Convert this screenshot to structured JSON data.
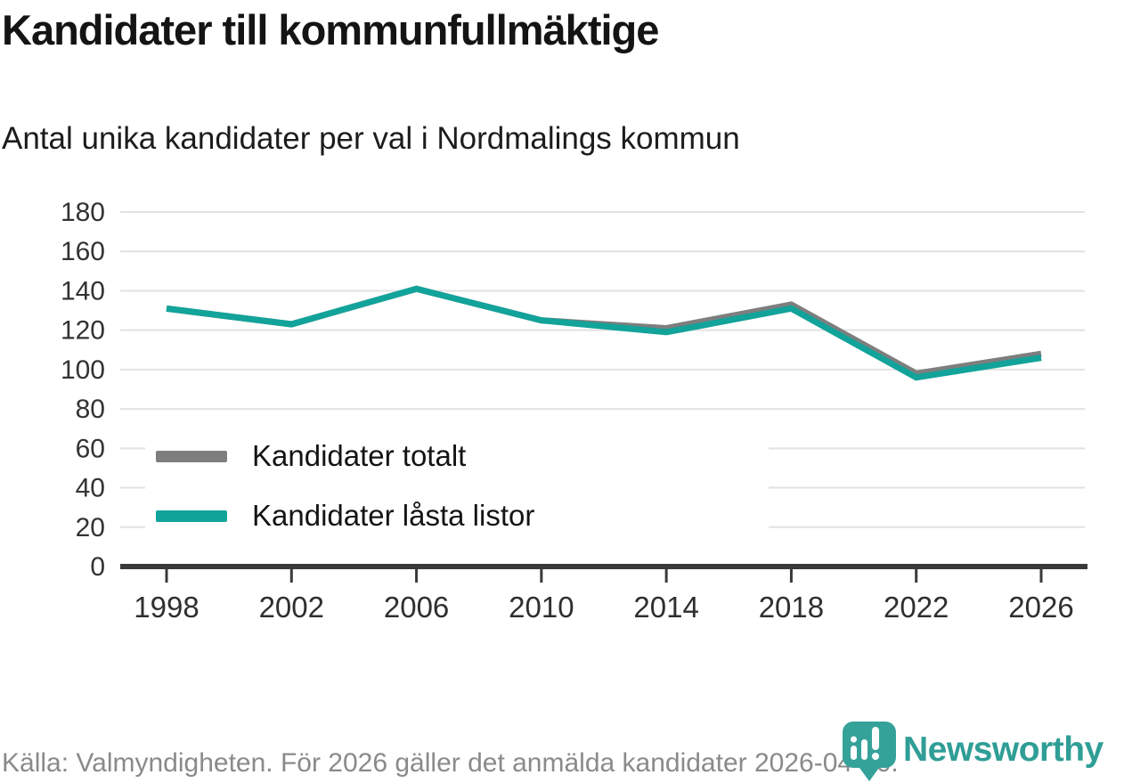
{
  "title": "Kandidater till kommunfullmäktige",
  "subtitle": "Antal unika kandidater per val i Nordmalings kommun",
  "legend": {
    "items": [
      {
        "label": "Kandidater totalt"
      },
      {
        "label": "Kandidater låsta listor"
      }
    ]
  },
  "footer": {
    "source_text": "Källa: Valmyndigheten. För 2026 gäller det anmälda kandidater 2026-04-10.",
    "brand_name": "Newsworthy"
  },
  "colors": {
    "series_total": "#7e7e7e",
    "series_locked": "#12a39a",
    "grid": "#e2e2e2",
    "axis": "#3a3a3a",
    "axis_label": "#2f2f2f",
    "footer_text": "#8a8a8a",
    "brand_teal": "#2f9e96"
  },
  "chart_data": {
    "type": "line",
    "title": "Kandidater till kommunfullmäktige",
    "subtitle": "Antal unika kandidater per val i Nordmalings kommun",
    "x": [
      1998,
      2002,
      2006,
      2010,
      2014,
      2018,
      2022,
      2026
    ],
    "series": [
      {
        "name": "Kandidater totalt",
        "color": "#7e7e7e",
        "values": [
          131,
          123,
          141,
          125,
          121,
          133,
          98,
          108
        ]
      },
      {
        "name": "Kandidater låsta listor",
        "color": "#12a39a",
        "values": [
          131,
          123,
          141,
          125,
          119,
          131,
          96,
          106
        ]
      }
    ],
    "ylim": [
      0,
      180
    ],
    "ytick_step": 20,
    "xlabel": "",
    "ylabel": "",
    "grid": "horizontal",
    "legend_position": "inside-bottom-left"
  }
}
